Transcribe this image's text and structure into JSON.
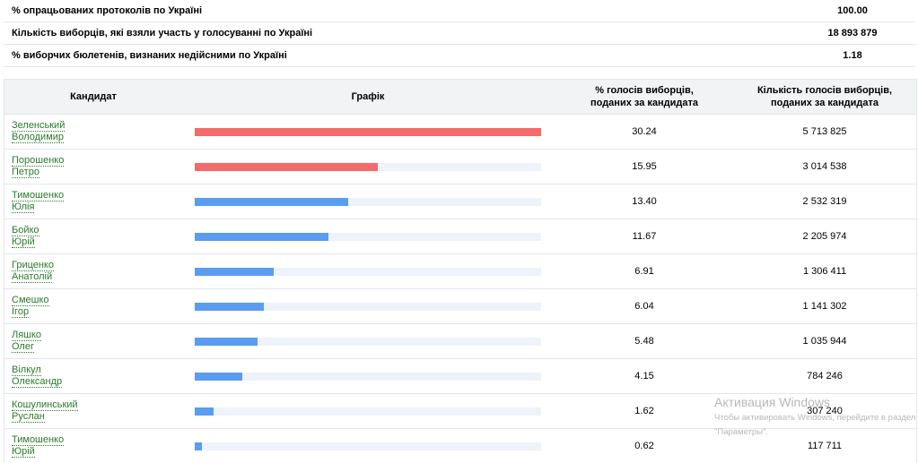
{
  "summary": {
    "processed_label": "% опрацьованих протоколів по Україні",
    "processed_value": "100.00",
    "turnout_label": "Кількість виборців, які взяли участь у голосуванні по Україні",
    "turnout_value": "18 893 879",
    "invalid_label": "% виборчих бюлетенів, визнаних недійсними по Україні",
    "invalid_value": "1.18"
  },
  "table": {
    "col_candidate": "Кандидат",
    "col_chart": "Графік",
    "col_pct_line1": "% голосів виборців,",
    "col_pct_line2": "поданих за кандидата",
    "col_votes_line1": "Кількість голосів виборців,",
    "col_votes_line2": "поданих за кандидата"
  },
  "colors": {
    "top_two": "#f56a6a",
    "others": "#5a9cf0",
    "track": "#eef2fa",
    "link": "#2a7a2a"
  },
  "chart_data": {
    "type": "bar",
    "max_value": 30.24,
    "categories": [
      "Зеленський Володимир",
      "Порошенко Петро",
      "Тимошенко Юлія",
      "Бойко Юрій",
      "Гриценко Анатолій",
      "Смешко Ігор",
      "Ляшко Олег",
      "Вілкул Олександр",
      "Кошулинський Руслан",
      "Тимошенко Юрій"
    ],
    "rows": [
      {
        "surname": "Зеленський",
        "given": "Володимир",
        "pct": 30.24,
        "pct_text": "30.24",
        "votes": "5 713 825",
        "highlight": true
      },
      {
        "surname": "Порошенко",
        "given": "Петро",
        "pct": 15.95,
        "pct_text": "15.95",
        "votes": "3 014 538",
        "highlight": true
      },
      {
        "surname": "Тимошенко",
        "given": "Юлія",
        "pct": 13.4,
        "pct_text": "13.40",
        "votes": "2 532 319",
        "highlight": false
      },
      {
        "surname": "Бойко",
        "given": "Юрій",
        "pct": 11.67,
        "pct_text": "11.67",
        "votes": "2 205 974",
        "highlight": false
      },
      {
        "surname": "Гриценко",
        "given": "Анатолій",
        "pct": 6.91,
        "pct_text": "6.91",
        "votes": "1 306 411",
        "highlight": false
      },
      {
        "surname": "Смешко",
        "given": "Ігор",
        "pct": 6.04,
        "pct_text": "6.04",
        "votes": "1 141 302",
        "highlight": false
      },
      {
        "surname": "Ляшко",
        "given": "Олег",
        "pct": 5.48,
        "pct_text": "5.48",
        "votes": "1 035 944",
        "highlight": false
      },
      {
        "surname": "Вілкул",
        "given": "Олександр",
        "pct": 4.15,
        "pct_text": "4.15",
        "votes": "784 246",
        "highlight": false
      },
      {
        "surname": "Кошулинський",
        "given": "Руслан",
        "pct": 1.62,
        "pct_text": "1.62",
        "votes": "307 240",
        "highlight": false
      },
      {
        "surname": "Тимошенко",
        "given": "Юрій",
        "pct": 0.62,
        "pct_text": "0.62",
        "votes": "117 711",
        "highlight": false
      }
    ]
  },
  "watermark": {
    "title": "Активация Windows",
    "line1": "Чтобы активировать Windows, перейдите в раздел",
    "line2": "\"Параметры\"."
  }
}
